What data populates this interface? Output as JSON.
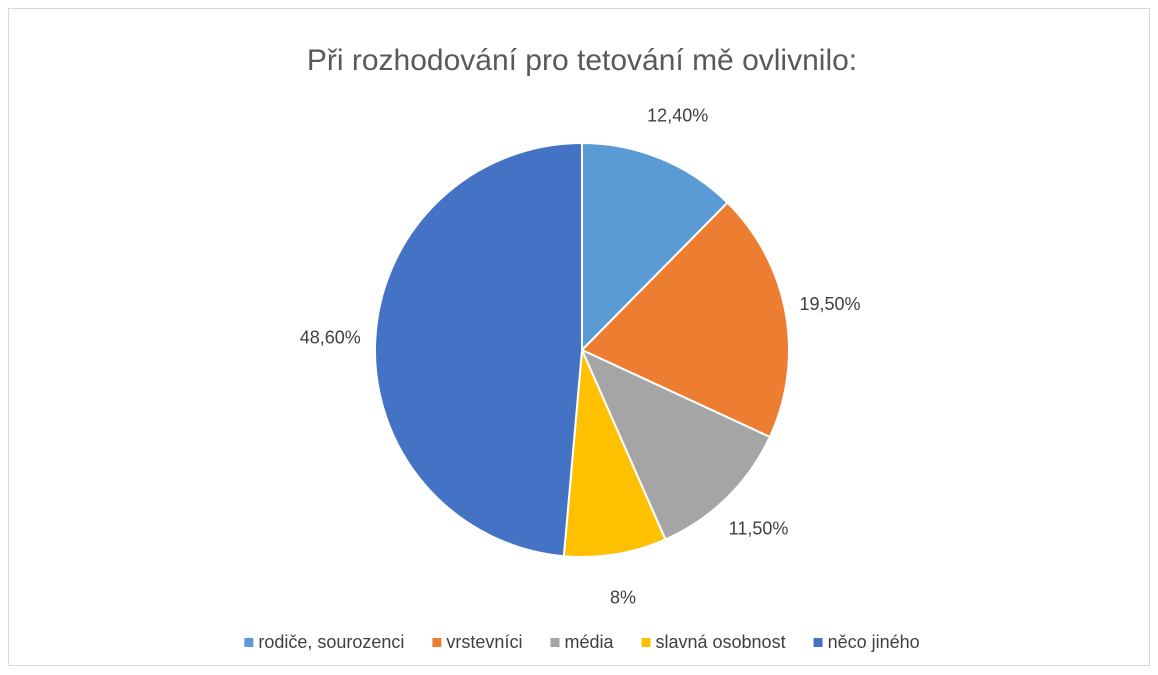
{
  "chart_data": {
    "type": "pie",
    "title": "Při rozhodování pro tetování mě ovlivnilo:",
    "categories": [
      "rodiče, sourozenci",
      "vrstevníci",
      "média",
      "slavná osobnost",
      "něco jiného"
    ],
    "values": [
      12.4,
      19.5,
      11.5,
      8,
      48.6
    ],
    "value_labels": [
      "12,40%",
      "19,50%",
      "11,50%",
      "8%",
      "48,60%"
    ],
    "colors": [
      "#5b9bd5",
      "#ed7d31",
      "#a5a5a5",
      "#ffc000",
      "#4472c4"
    ],
    "legend": "bottom"
  }
}
